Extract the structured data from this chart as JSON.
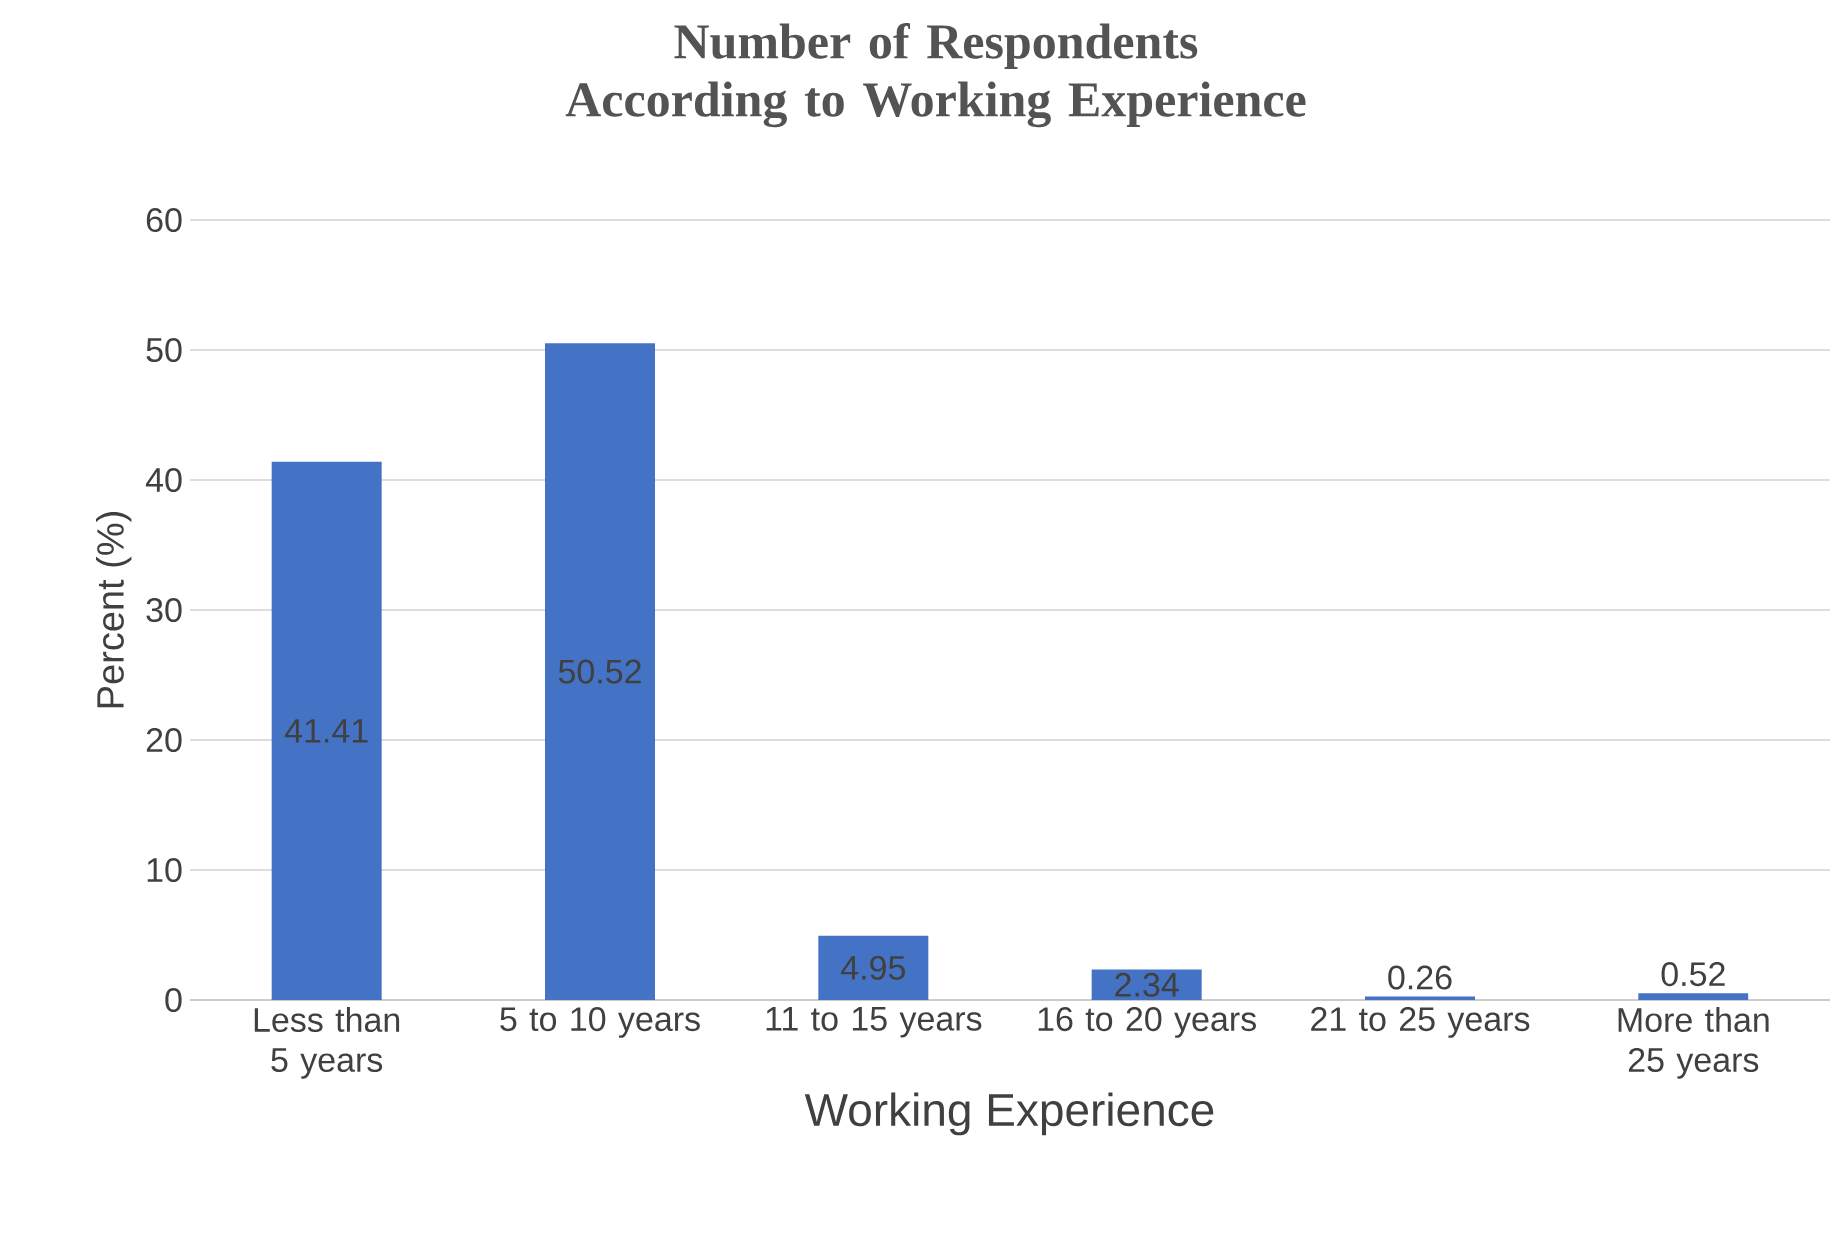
{
  "chart_data": {
    "type": "bar",
    "title": "Number of Respondents According to Working Experience",
    "xlabel": "Working Experience",
    "ylabel": "Percent (%)",
    "categories": [
      "Less than 5 years",
      "5 to 10 years",
      "11 to 15 years",
      "16 to 20 years",
      "21 to 25 years",
      "More than 25 years"
    ],
    "values": [
      41.41,
      50.52,
      4.95,
      2.34,
      0.26,
      0.52
    ],
    "color": "#4472c4",
    "ylim": [
      0,
      60
    ],
    "yticks": [
      0,
      10,
      20,
      30,
      40,
      50,
      60
    ],
    "grid": "y",
    "data_labels": true
  }
}
